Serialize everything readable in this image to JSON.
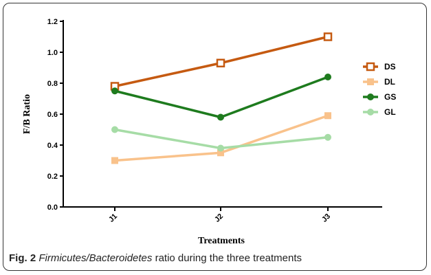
{
  "caption": {
    "label": "Fig. 2",
    "italic_part": "Firmicutes/Bacteroidetes",
    "rest": " ratio during the three treatments"
  },
  "chart_data": {
    "type": "line",
    "title": "",
    "xlabel": "Treatments",
    "ylabel": "F/B Ratio",
    "categories": [
      "J1",
      "J2",
      "J3"
    ],
    "ylim": [
      0,
      1.2
    ],
    "yticks": [
      "0.0",
      "0.2",
      "0.4",
      "0.6",
      "0.8",
      "1.0",
      "1.2"
    ],
    "grid": false,
    "legend_position": "right",
    "series": [
      {
        "name": "DS",
        "values": [
          0.78,
          0.93,
          1.1
        ],
        "color": "#c55a11",
        "marker": "open-square"
      },
      {
        "name": "DL",
        "values": [
          0.3,
          0.35,
          0.59
        ],
        "color": "#f9c28b",
        "marker": "square"
      },
      {
        "name": "GS",
        "values": [
          0.75,
          0.58,
          0.84
        ],
        "color": "#1e7b1e",
        "marker": "circle"
      },
      {
        "name": "GL",
        "values": [
          0.5,
          0.38,
          0.45
        ],
        "color": "#a6dca6",
        "marker": "circle"
      }
    ]
  }
}
